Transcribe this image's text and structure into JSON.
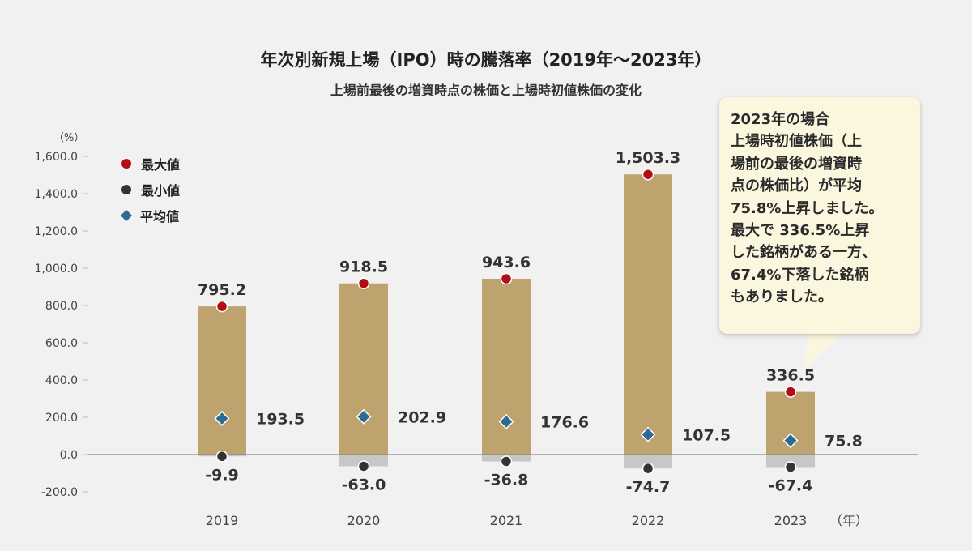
{
  "header": {
    "title": "年次別新規上場（IPO）時の騰落率（2019年～2023年）",
    "subtitle": "上場前最後の増資時点の株価と上場時初値株価の変化"
  },
  "legend": {
    "max_label": "最大値",
    "min_label": "最小値",
    "avg_label": "平均値"
  },
  "callout": {
    "lines": [
      "2023年の場合",
      "上場時初値株価（上",
      "場前の最後の増資時",
      "点の株価比）が平均",
      "75.8%上昇しました。",
      "最大で 336.5%上昇",
      "した銘柄がある一方、",
      "67.4%下落した銘柄",
      "もありました。"
    ]
  },
  "colors": {
    "bar": "#bfa36f",
    "negative_bar": "#c8c7c7",
    "max_marker": "#b20d14",
    "min_marker": "#333333",
    "avg_marker": "#2f6a8f",
    "background": "#f1f1f1",
    "callout_bg": "#fbf6de"
  },
  "chart_data": {
    "type": "bar",
    "y_unit_label": "（%）",
    "x_unit_label": "（年）",
    "categories": [
      "2019",
      "2020",
      "2021",
      "2022",
      "2023"
    ],
    "series": [
      {
        "name": "最大値",
        "values": [
          795.2,
          918.5,
          943.6,
          1503.3,
          336.5
        ]
      },
      {
        "name": "最小値",
        "values": [
          -9.9,
          -63.0,
          -36.8,
          -74.7,
          -67.4
        ]
      },
      {
        "name": "平均値",
        "values": [
          193.5,
          202.9,
          176.6,
          107.5,
          75.8
        ]
      }
    ],
    "max_labels": [
      "795.2",
      "918.5",
      "943.6",
      "1,503.3",
      "336.5"
    ],
    "min_labels": [
      "-9.9",
      "-63.0",
      "-36.8",
      "-74.7",
      "-67.4"
    ],
    "avg_labels": [
      "193.5",
      "202.9",
      "176.6",
      "107.5",
      "75.8"
    ],
    "yticks": [
      -200,
      0,
      200,
      400,
      600,
      800,
      1000,
      1200,
      1400,
      1600
    ],
    "ytick_labels": [
      "-200.0",
      "0.0",
      "200.0",
      "400.0",
      "600.0",
      "800.0",
      "1,000.0",
      "1,200.0",
      "1,400.0",
      "1,600.0"
    ],
    "ylim": [
      -200,
      1600
    ],
    "grid": false,
    "legend_position": "top-left"
  }
}
